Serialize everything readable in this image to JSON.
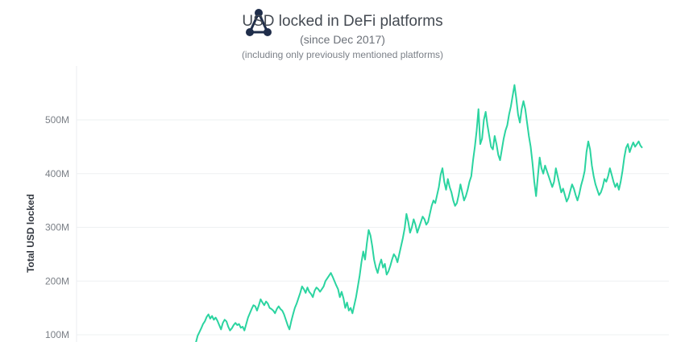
{
  "header": {
    "title": "USD locked in DeFi platforms",
    "subtitle": "(since Dec 2017)",
    "note": "(including only previously mentioned platforms)"
  },
  "logo": {
    "icon": "network-nodes-icon",
    "color": "#1f2d4a"
  },
  "chart_data": {
    "type": "line",
    "title": "USD locked in DeFi platforms",
    "subtitle": "(since Dec 2017)",
    "xlabel": "",
    "ylabel": "Total USD locked",
    "ylim": [
      100000000,
      590000000
    ],
    "y_ticks": [
      {
        "value": 100000000,
        "label": "100M"
      },
      {
        "value": 200000000,
        "label": "200M"
      },
      {
        "value": 300000000,
        "label": "300M"
      },
      {
        "value": 400000000,
        "label": "400M"
      },
      {
        "value": 500000000,
        "label": "500M"
      }
    ],
    "grid": true,
    "line_color": "#2bd4a0",
    "series": [
      {
        "values": [
          85000000,
          98000000,
          105000000,
          112000000,
          120000000,
          125000000,
          133000000,
          138000000,
          130000000,
          135000000,
          128000000,
          132000000,
          126000000,
          118000000,
          110000000,
          122000000,
          128000000,
          125000000,
          115000000,
          108000000,
          112000000,
          118000000,
          122000000,
          118000000,
          120000000,
          113000000,
          115000000,
          108000000,
          120000000,
          132000000,
          140000000,
          148000000,
          155000000,
          153000000,
          145000000,
          155000000,
          166000000,
          160000000,
          155000000,
          162000000,
          158000000,
          150000000,
          148000000,
          145000000,
          140000000,
          148000000,
          153000000,
          148000000,
          145000000,
          138000000,
          128000000,
          118000000,
          110000000,
          125000000,
          138000000,
          150000000,
          158000000,
          168000000,
          178000000,
          190000000,
          185000000,
          178000000,
          188000000,
          180000000,
          176000000,
          170000000,
          182000000,
          188000000,
          185000000,
          180000000,
          185000000,
          190000000,
          200000000,
          205000000,
          210000000,
          215000000,
          208000000,
          200000000,
          192000000,
          185000000,
          170000000,
          180000000,
          168000000,
          150000000,
          160000000,
          145000000,
          150000000,
          140000000,
          155000000,
          170000000,
          190000000,
          210000000,
          235000000,
          255000000,
          240000000,
          270000000,
          295000000,
          285000000,
          265000000,
          240000000,
          225000000,
          215000000,
          230000000,
          240000000,
          225000000,
          232000000,
          212000000,
          218000000,
          228000000,
          240000000,
          250000000,
          245000000,
          235000000,
          250000000,
          265000000,
          280000000,
          298000000,
          325000000,
          310000000,
          290000000,
          300000000,
          315000000,
          305000000,
          290000000,
          300000000,
          310000000,
          320000000,
          315000000,
          305000000,
          310000000,
          325000000,
          340000000,
          350000000,
          345000000,
          360000000,
          375000000,
          398000000,
          410000000,
          385000000,
          370000000,
          390000000,
          375000000,
          365000000,
          350000000,
          340000000,
          345000000,
          360000000,
          380000000,
          365000000,
          350000000,
          358000000,
          370000000,
          385000000,
          395000000,
          425000000,
          450000000,
          480000000,
          520000000,
          455000000,
          465000000,
          500000000,
          515000000,
          490000000,
          470000000,
          450000000,
          445000000,
          470000000,
          455000000,
          435000000,
          425000000,
          445000000,
          465000000,
          480000000,
          490000000,
          510000000,
          525000000,
          545000000,
          565000000,
          540000000,
          510000000,
          495000000,
          520000000,
          535000000,
          520000000,
          495000000,
          470000000,
          450000000,
          420000000,
          385000000,
          358000000,
          395000000,
          430000000,
          410000000,
          400000000,
          415000000,
          405000000,
          395000000,
          385000000,
          375000000,
          385000000,
          410000000,
          395000000,
          380000000,
          365000000,
          372000000,
          360000000,
          348000000,
          355000000,
          368000000,
          380000000,
          372000000,
          360000000,
          350000000,
          362000000,
          378000000,
          390000000,
          405000000,
          440000000,
          460000000,
          445000000,
          415000000,
          395000000,
          380000000,
          370000000,
          360000000,
          365000000,
          375000000,
          390000000,
          385000000,
          395000000,
          410000000,
          398000000,
          385000000,
          375000000,
          382000000,
          370000000,
          385000000,
          405000000,
          430000000,
          448000000,
          455000000,
          440000000,
          450000000,
          458000000,
          450000000,
          455000000,
          460000000,
          452000000,
          448000000
        ]
      }
    ]
  }
}
